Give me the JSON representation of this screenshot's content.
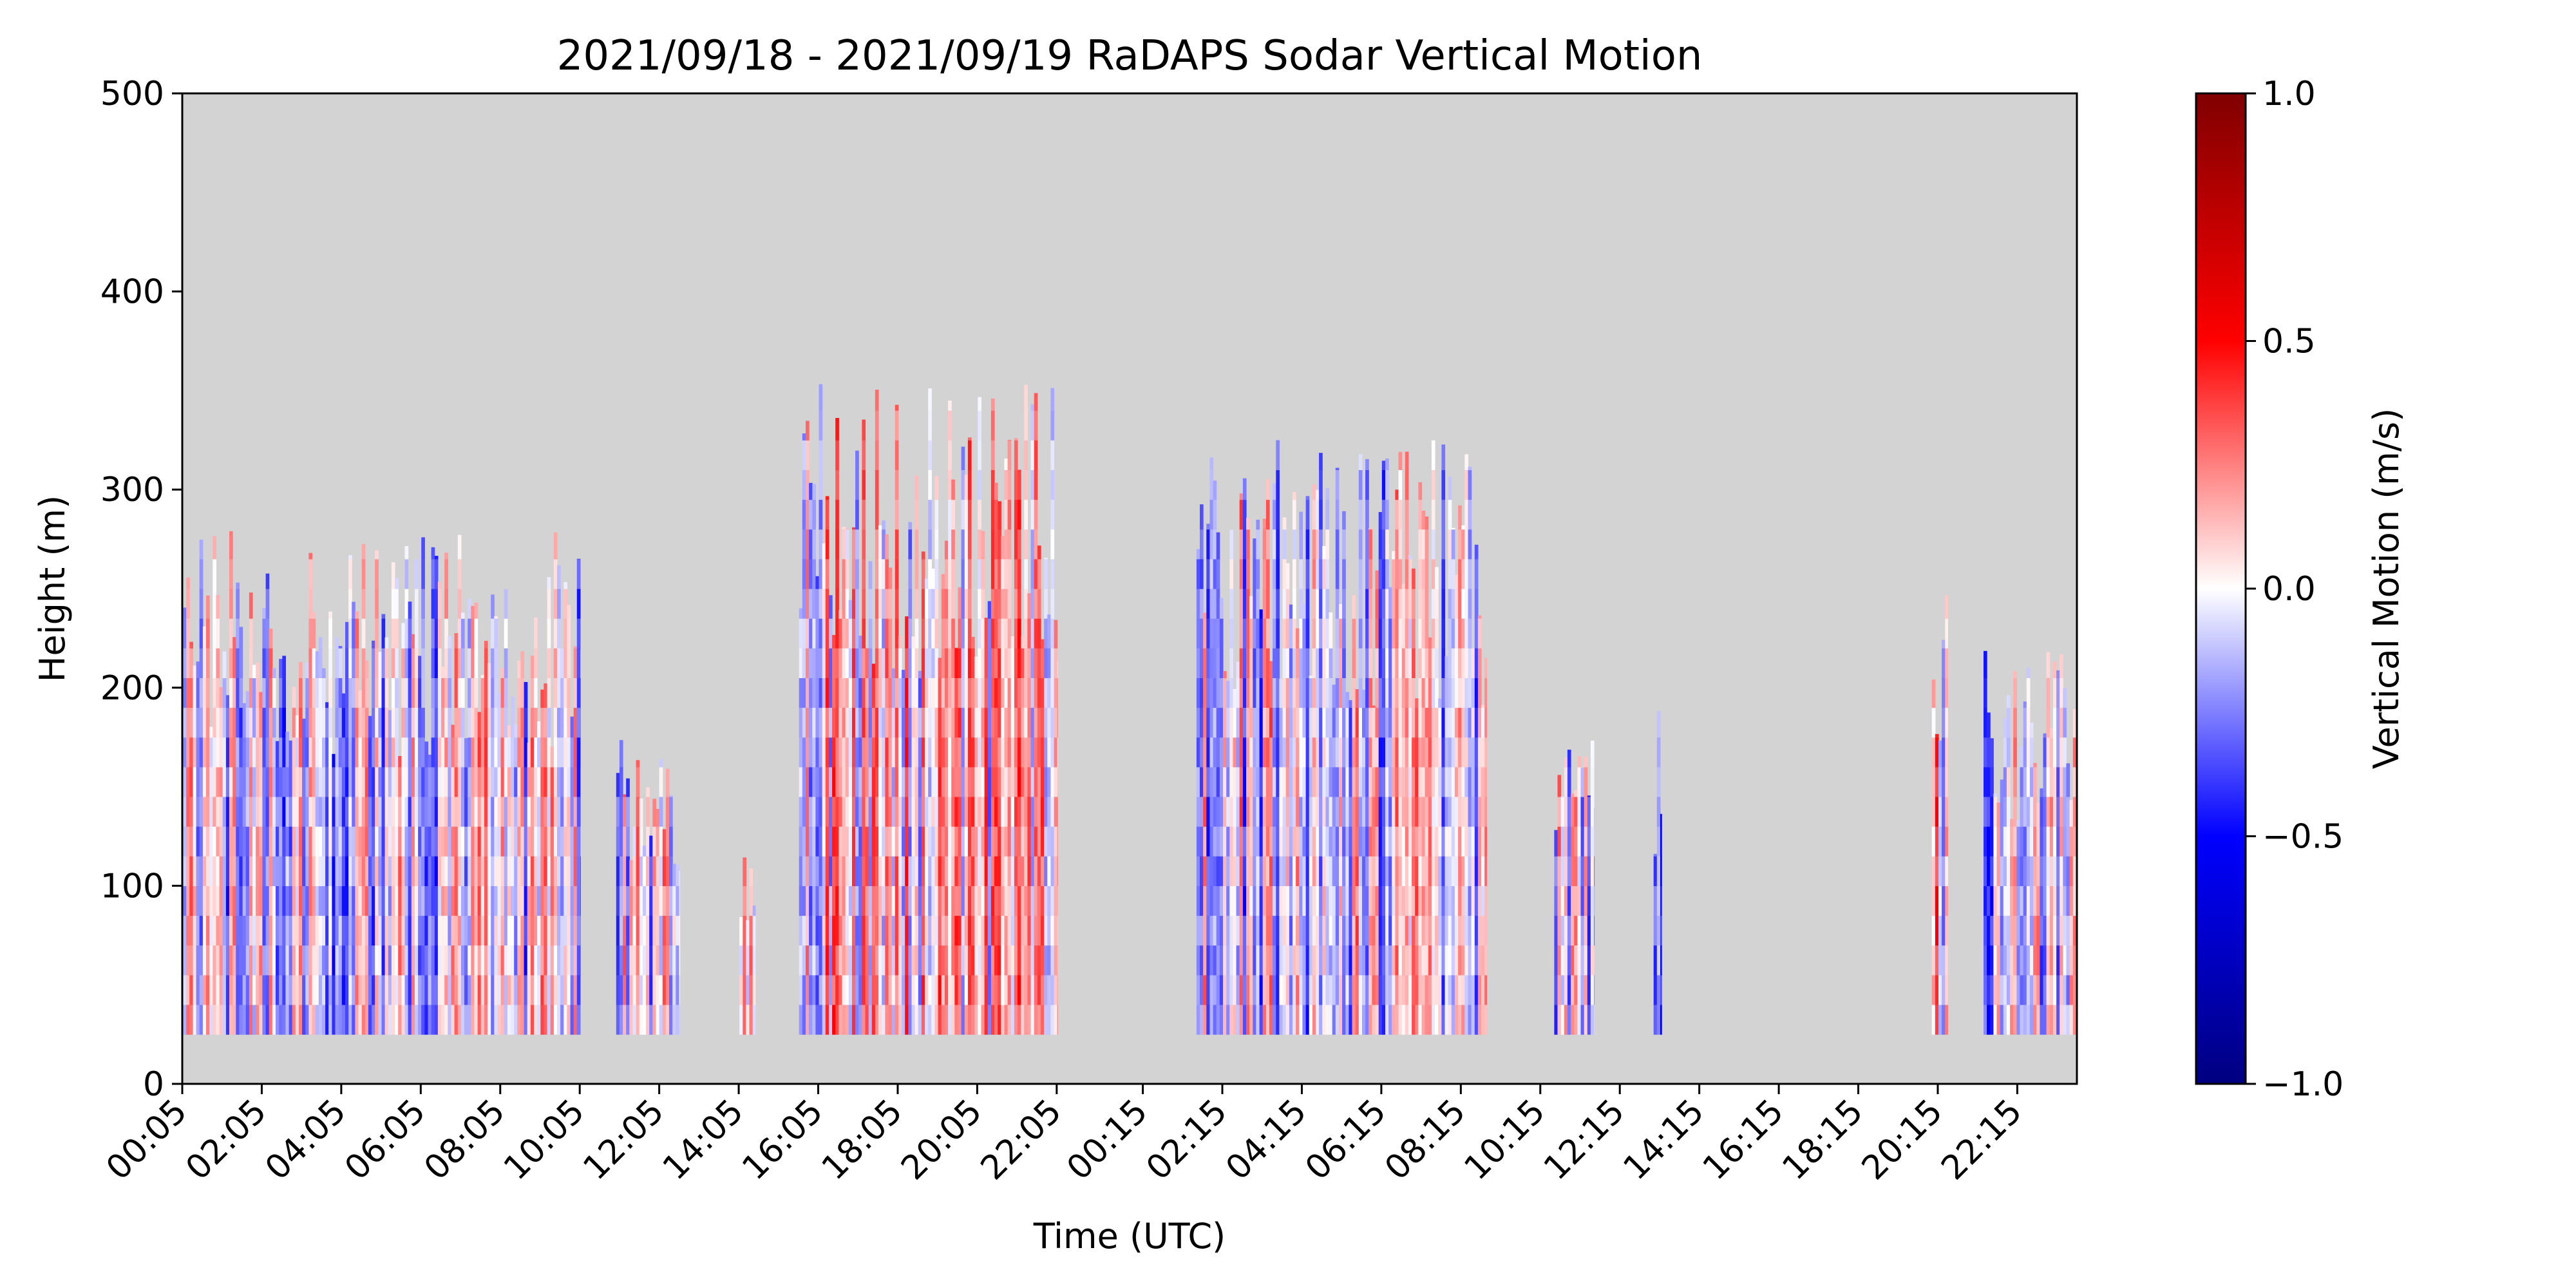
{
  "chart_data": {
    "type": "heatmap",
    "title": "2021/09/18 - 2021/09/19 RaDAPS Sodar Vertical Motion",
    "xlabel": "Time (UTC)",
    "ylabel": "Height (m)",
    "colorbar_label": "Vertical Motion (m/s)",
    "colormap": "seismic",
    "background_color": "#d3d3d3",
    "xlim_hours": [
      0.0833,
      47.75
    ],
    "ylim": [
      0,
      500
    ],
    "clim": [
      -1.0,
      1.0
    ],
    "x_ticks": [
      {
        "hour": 0.0833,
        "label": "00:05"
      },
      {
        "hour": 2.0833,
        "label": "02:05"
      },
      {
        "hour": 4.0833,
        "label": "04:05"
      },
      {
        "hour": 6.0833,
        "label": "06:05"
      },
      {
        "hour": 8.0833,
        "label": "08:05"
      },
      {
        "hour": 10.0833,
        "label": "10:05"
      },
      {
        "hour": 12.0833,
        "label": "12:05"
      },
      {
        "hour": 14.0833,
        "label": "14:05"
      },
      {
        "hour": 16.0833,
        "label": "16:05"
      },
      {
        "hour": 18.0833,
        "label": "18:05"
      },
      {
        "hour": 20.0833,
        "label": "20:05"
      },
      {
        "hour": 22.0833,
        "label": "22:05"
      },
      {
        "hour": 24.25,
        "label": "00:15"
      },
      {
        "hour": 26.25,
        "label": "02:15"
      },
      {
        "hour": 28.25,
        "label": "04:15"
      },
      {
        "hour": 30.25,
        "label": "06:15"
      },
      {
        "hour": 32.25,
        "label": "08:15"
      },
      {
        "hour": 34.25,
        "label": "10:15"
      },
      {
        "hour": 36.25,
        "label": "12:15"
      },
      {
        "hour": 38.25,
        "label": "14:15"
      },
      {
        "hour": 40.25,
        "label": "16:15"
      },
      {
        "hour": 42.25,
        "label": "18:15"
      },
      {
        "hour": 44.25,
        "label": "20:15"
      },
      {
        "hour": 46.25,
        "label": "22:15"
      }
    ],
    "y_ticks": [
      {
        "value": 0,
        "label": "0"
      },
      {
        "value": 100,
        "label": "100"
      },
      {
        "value": 200,
        "label": "200"
      },
      {
        "value": 300,
        "label": "300"
      },
      {
        "value": 400,
        "label": "400"
      },
      {
        "value": 500,
        "label": "500"
      }
    ],
    "colorbar_ticks": [
      {
        "value": 1.0,
        "label": "1.0"
      },
      {
        "value": 0.5,
        "label": "0.5"
      },
      {
        "value": 0.0,
        "label": "0.0"
      },
      {
        "value": -0.5,
        "label": "−0.5"
      },
      {
        "value": -1.0,
        "label": "−1.0"
      }
    ],
    "data_bottom_height": 25,
    "data_segments": [
      {
        "start_hour": 0.1,
        "end_hour": 10.1,
        "max_height": 280,
        "mean_motion": -0.05
      },
      {
        "start_hour": 11.0,
        "end_hour": 12.6,
        "max_height": 175,
        "mean_motion": -0.05
      },
      {
        "start_hour": 14.1,
        "end_hour": 14.5,
        "max_height": 125,
        "mean_motion": -0.1
      },
      {
        "start_hour": 15.6,
        "end_hour": 22.1,
        "max_height": 355,
        "mean_motion": 0.05
      },
      {
        "start_hour": 25.6,
        "end_hour": 32.9,
        "max_height": 325,
        "mean_motion": -0.05
      },
      {
        "start_hour": 34.6,
        "end_hour": 35.6,
        "max_height": 190,
        "mean_motion": -0.1
      },
      {
        "start_hour": 37.1,
        "end_hour": 37.3,
        "max_height": 190,
        "mean_motion": -0.15
      },
      {
        "start_hour": 44.1,
        "end_hour": 44.5,
        "max_height": 250,
        "mean_motion": 0.1
      },
      {
        "start_hour": 45.4,
        "end_hour": 47.75,
        "max_height": 220,
        "mean_motion": -0.1
      }
    ]
  }
}
